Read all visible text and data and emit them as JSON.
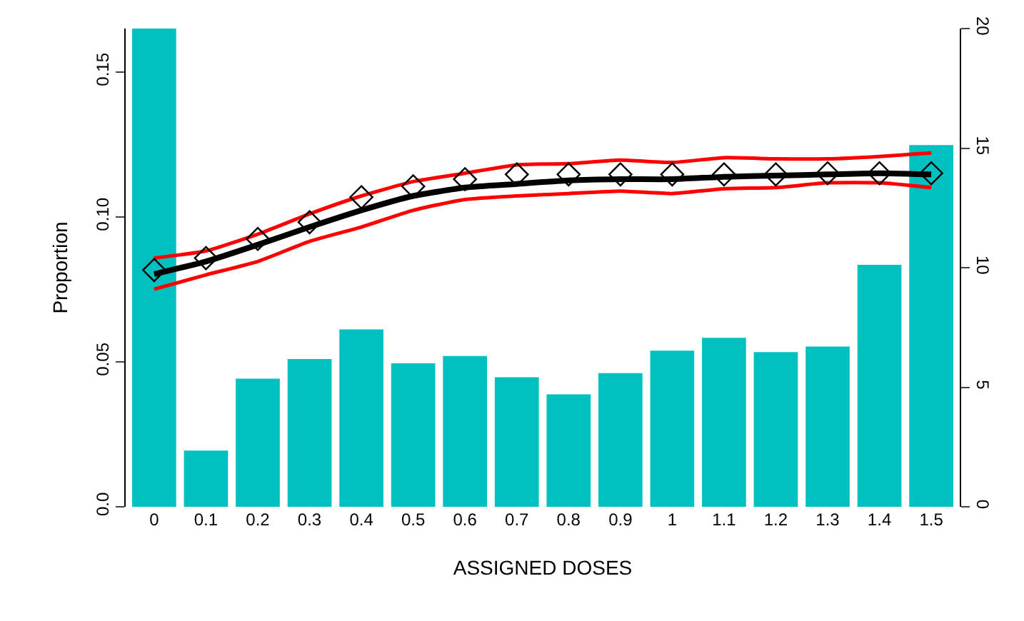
{
  "chart_data": {
    "type": "bar",
    "xlabel": "ASSIGNED DOSES",
    "ylabel": "Proportion",
    "categories": [
      "0",
      "0.1",
      "0.2",
      "0.3",
      "0.4",
      "0.5",
      "0.6",
      "0.7",
      "0.8",
      "0.9",
      "1",
      "1.1",
      "1.2",
      "1.3",
      "1.4",
      "1.5"
    ],
    "ylim": [
      0,
      0.165
    ],
    "yticks": [
      {
        "value": 0,
        "label": "0.0"
      },
      0.05,
      {
        "value": 0.1,
        "label": "0.10"
      },
      0.15
    ],
    "y2lim": [
      0,
      20
    ],
    "y2ticks": [
      0,
      5,
      10,
      15,
      20
    ],
    "series": [
      {
        "color": "#00c0c0",
        "values": [
          0.165,
          0.0194,
          0.0442,
          0.051,
          0.0612,
          0.0495,
          0.052,
          0.0447,
          0.0388,
          0.0461,
          0.0539,
          0.0583,
          0.0534,
          0.0553,
          0.0835,
          0.1248
        ]
      },
      {
        "type": "line",
        "axis": "y2",
        "color": "#ff0000",
        "marker": "none",
        "values": [
          10.4,
          10.7,
          11.4,
          12.25,
          13.0,
          13.6,
          13.95,
          14.3,
          14.35,
          14.5,
          14.4,
          14.6,
          14.55,
          14.55,
          14.65,
          14.8
        ]
      },
      {
        "type": "line",
        "axis": "y2",
        "color": "#ff0000",
        "marker": "none",
        "values": [
          9.1,
          9.7,
          10.26,
          11.1,
          11.7,
          12.4,
          12.85,
          13.0,
          13.1,
          13.2,
          13.1,
          13.3,
          13.35,
          13.55,
          13.55,
          13.35
        ]
      },
      {
        "type": "line",
        "axis": "y2",
        "color": "#000000",
        "marker": "none",
        "values": [
          9.73,
          10.26,
          10.96,
          11.7,
          12.4,
          13.0,
          13.35,
          13.5,
          13.65,
          13.7,
          13.7,
          13.8,
          13.85,
          13.9,
          13.95,
          13.9
        ]
      },
      {
        "type": "scatter",
        "axis": "y2",
        "color": "#000000",
        "marker": "diamond",
        "values": [
          9.9,
          10.4,
          11.2,
          11.9,
          12.95,
          13.4,
          13.7,
          13.9,
          13.9,
          13.9,
          13.9,
          13.9,
          13.9,
          13.95,
          13.95,
          13.95
        ]
      }
    ]
  }
}
